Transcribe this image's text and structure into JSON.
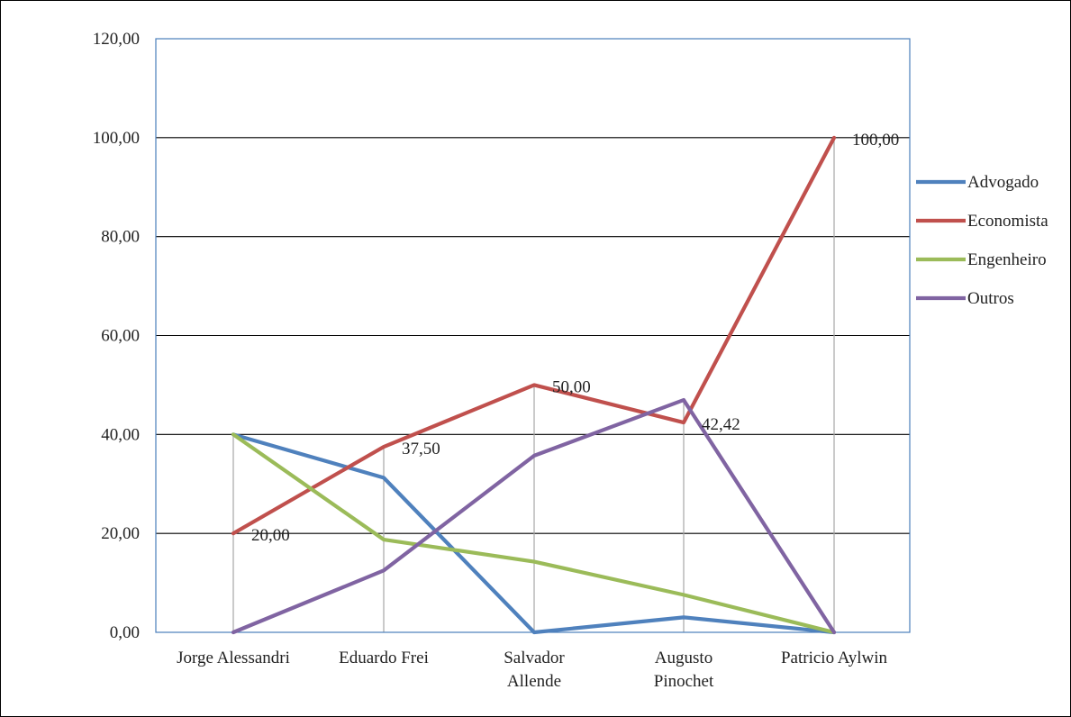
{
  "chart_data": {
    "type": "line",
    "title": "",
    "xlabel": "",
    "ylabel": "",
    "categories": [
      [
        "Jorge Alessandri"
      ],
      [
        "Eduardo Frei"
      ],
      [
        "Salvador",
        "Allende"
      ],
      [
        "Augusto",
        "Pinochet"
      ],
      [
        "Patricio Aylwin"
      ]
    ],
    "ylim": [
      0,
      120
    ],
    "y_ticks": [
      "0,00",
      "20,00",
      "40,00",
      "60,00",
      "80,00",
      "100,00",
      "120,00"
    ],
    "y_tick_values": [
      0,
      20,
      40,
      60,
      80,
      100,
      120
    ],
    "grid": true,
    "legend_position": "right",
    "series": [
      {
        "name": "Advogado",
        "color": "#4f81bd",
        "values": [
          40.0,
          31.25,
          0.0,
          3.03,
          0.0
        ]
      },
      {
        "name": "Economista",
        "color": "#c0504d",
        "values": [
          20.0,
          37.5,
          50.0,
          42.42,
          100.0
        ],
        "data_labels": [
          "20,00",
          "37,50",
          "50,00",
          "42,42",
          "100,00"
        ]
      },
      {
        "name": "Engenheiro",
        "color": "#9bbb59",
        "values": [
          40.0,
          18.75,
          14.29,
          7.58,
          0.0
        ]
      },
      {
        "name": "Outros",
        "color": "#8064a2",
        "values": [
          0.0,
          12.5,
          35.71,
          46.97,
          0.0
        ]
      }
    ]
  }
}
